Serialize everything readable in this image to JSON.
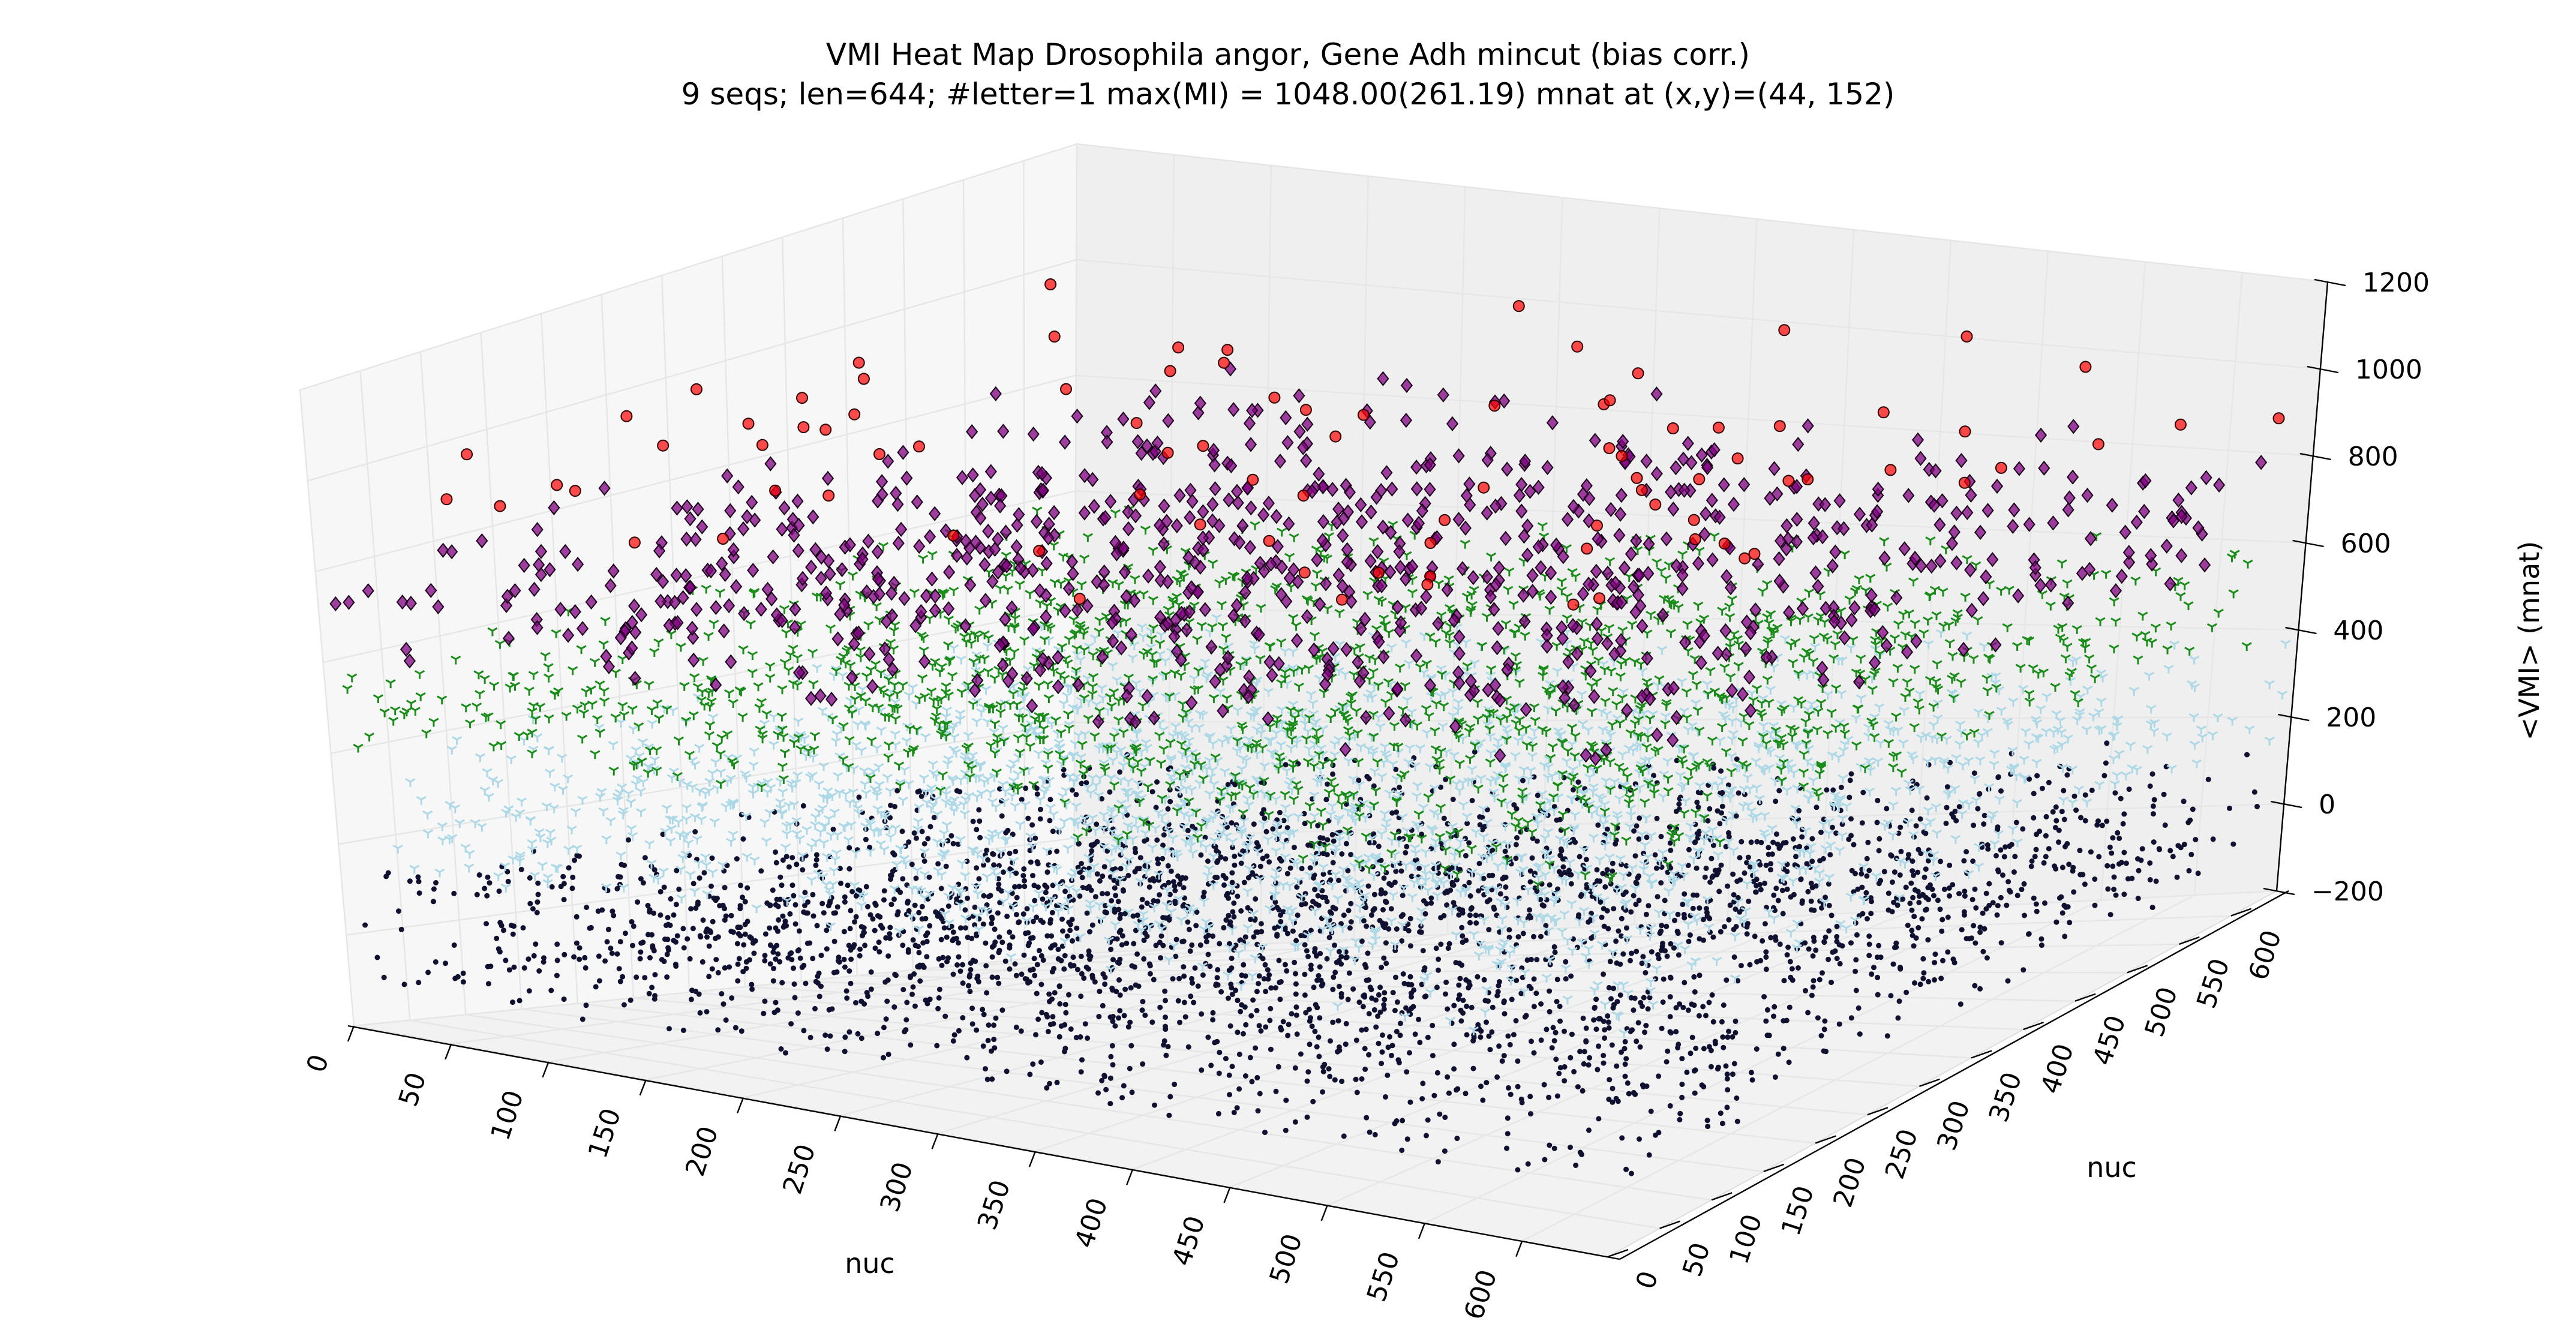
{
  "chart_data": {
    "type": "scatter",
    "projection": "3d",
    "title": "VMI Heat Map Drosophila angor, Gene Adh mincut (bias corr.)",
    "subtitle": "9 seqs; len=644; #letter=1 max(MI) = 1048.00(261.19) mnat at (x,y)=(44, 152)",
    "xlabel": "nuc",
    "ylabel": "nuc",
    "zlabel": "<VMI> (mnat)",
    "xlim": [
      0,
      644
    ],
    "ylim": [
      0,
      644
    ],
    "zlim": [
      -200,
      1200
    ],
    "x_ticks": [
      "0",
      "50",
      "100",
      "150",
      "200",
      "250",
      "300",
      "350",
      "400",
      "450",
      "500",
      "550",
      "600"
    ],
    "y_ticks": [
      "0",
      "50",
      "100",
      "150",
      "200",
      "250",
      "300",
      "350",
      "400",
      "450",
      "500",
      "550",
      "600"
    ],
    "z_ticks": [
      "−200",
      "0",
      "200",
      "400",
      "600",
      "800",
      "1000",
      "1200"
    ],
    "grid": true,
    "legend": "none",
    "series": [
      {
        "marker": "point",
        "color": "#101030",
        "z_range": [
          -100,
          150
        ],
        "approx_points": 6000,
        "x_range": [
          0,
          644
        ],
        "y_range": [
          0,
          644
        ]
      },
      {
        "marker": "tri_down",
        "color": "#add8e6",
        "z_range": [
          150,
          400
        ],
        "approx_points": 2000,
        "x_range": [
          0,
          644
        ],
        "y_range": [
          0,
          644
        ]
      },
      {
        "marker": "tri_down",
        "color": "#1a8c1a",
        "z_range": [
          400,
          600
        ],
        "approx_points": 1500,
        "x_range": [
          0,
          644
        ],
        "y_range": [
          0,
          644
        ]
      },
      {
        "marker": "diamond",
        "color": "#800080",
        "z_range": [
          600,
          850
        ],
        "approx_points": 900,
        "x_range": [
          0,
          644
        ],
        "y_range": [
          0,
          644
        ]
      },
      {
        "marker": "circle",
        "color": "#ff0000",
        "z_range": [
          850,
          1048
        ],
        "approx_points": 90,
        "x_range": [
          0,
          644
        ],
        "y_range": [
          0,
          644
        ]
      }
    ],
    "max_point": {
      "x": 44,
      "y": 152,
      "z": 1048
    }
  }
}
